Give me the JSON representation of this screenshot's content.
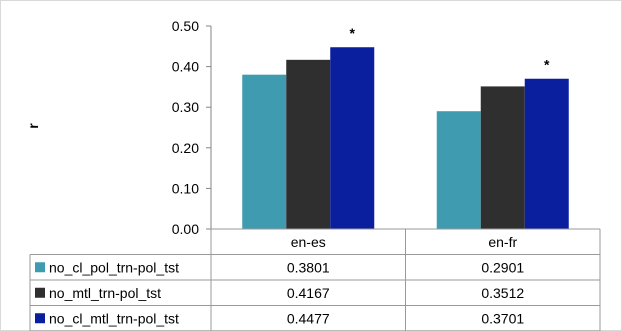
{
  "chart_data": {
    "type": "bar",
    "ylabel": "r",
    "ylim": [
      0,
      0.5
    ],
    "yticks": [
      "0.00",
      "0.10",
      "0.20",
      "0.30",
      "0.40",
      "0.50"
    ],
    "categories": [
      "en-es",
      "en-fr"
    ],
    "series": [
      {
        "name": "no_cl_pol_trn-pol_tst",
        "values": [
          0.3801,
          0.2901
        ],
        "labels": [
          "0.3801",
          "0.2901"
        ],
        "color": "#3e9bb0"
      },
      {
        "name": "no_mtl_trn-pol_tst",
        "values": [
          0.4167,
          0.3512
        ],
        "labels": [
          "0.4167",
          "0.3512"
        ],
        "color": "#2f2f2f"
      },
      {
        "name": "no_cl_mtl_trn-pol_tst",
        "values": [
          0.4477,
          0.3701
        ],
        "labels": [
          "0.4477",
          "0.3701"
        ],
        "color": "#0a1f9e"
      }
    ],
    "annotations": [
      {
        "category": "en-es",
        "series": "no_cl_mtl_trn-pol_tst",
        "text": "*"
      },
      {
        "category": "en-fr",
        "series": "no_cl_mtl_trn-pol_tst",
        "text": "*"
      }
    ],
    "data_table": true,
    "grid": false
  }
}
